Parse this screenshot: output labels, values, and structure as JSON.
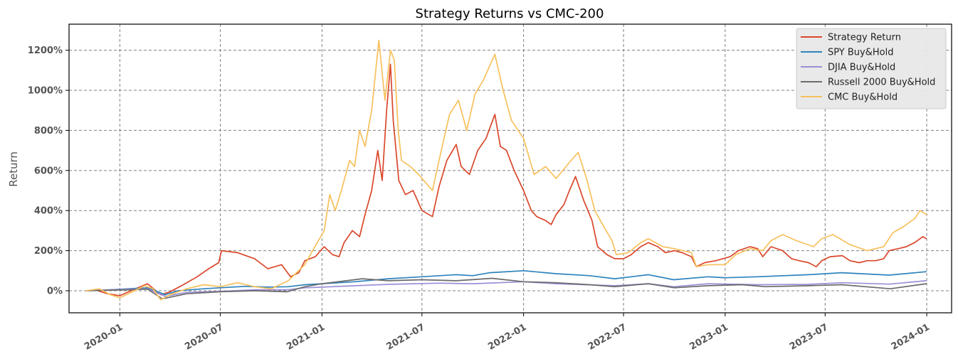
{
  "chart_data": {
    "type": "line",
    "title": "Strategy Returns vs CMC-200",
    "xlabel": "",
    "ylabel": "Return",
    "xlim": [
      "2019-10-01",
      "2024-02-15"
    ],
    "ylim": [
      -110,
      1330
    ],
    "x_ticks": [
      "2020-01",
      "2020-07",
      "2021-01",
      "2021-07",
      "2022-01",
      "2022-07",
      "2023-01",
      "2023-07",
      "2024-01"
    ],
    "y_ticks": [
      0,
      200,
      400,
      600,
      800,
      1000,
      1200
    ],
    "y_tick_labels": [
      "0%",
      "200%",
      "400%",
      "600%",
      "800%",
      "1000%",
      "1200%"
    ],
    "grid": true,
    "legend_position": "top-right",
    "series": [
      {
        "name": "Strategy Return",
        "color": "#d9472b",
        "points": [
          [
            "2019-11-01",
            0
          ],
          [
            "2019-11-20",
            2
          ],
          [
            "2019-12-10",
            -15
          ],
          [
            "2020-01-01",
            -25
          ],
          [
            "2020-01-25",
            5
          ],
          [
            "2020-02-20",
            35
          ],
          [
            "2020-03-15",
            -20
          ],
          [
            "2020-04-01",
            -5
          ],
          [
            "2020-04-25",
            30
          ],
          [
            "2020-05-20",
            70
          ],
          [
            "2020-06-10",
            110
          ],
          [
            "2020-06-28",
            140
          ],
          [
            "2020-07-03",
            200
          ],
          [
            "2020-08-01",
            190
          ],
          [
            "2020-09-01",
            160
          ],
          [
            "2020-09-25",
            110
          ],
          [
            "2020-10-20",
            130
          ],
          [
            "2020-11-05",
            70
          ],
          [
            "2020-11-20",
            90
          ],
          [
            "2020-12-01",
            150
          ],
          [
            "2020-12-20",
            170
          ],
          [
            "2021-01-05",
            220
          ],
          [
            "2021-01-20",
            180
          ],
          [
            "2021-02-01",
            170
          ],
          [
            "2021-02-10",
            240
          ],
          [
            "2021-02-25",
            300
          ],
          [
            "2021-03-10",
            270
          ],
          [
            "2021-03-20",
            380
          ],
          [
            "2021-04-01",
            500
          ],
          [
            "2021-04-12",
            700
          ],
          [
            "2021-04-20",
            550
          ],
          [
            "2021-04-28",
            900
          ],
          [
            "2021-05-05",
            1130
          ],
          [
            "2021-05-10",
            850
          ],
          [
            "2021-05-15",
            700
          ],
          [
            "2021-05-20",
            550
          ],
          [
            "2021-06-01",
            480
          ],
          [
            "2021-06-15",
            500
          ],
          [
            "2021-07-01",
            400
          ],
          [
            "2021-07-20",
            370
          ],
          [
            "2021-08-01",
            520
          ],
          [
            "2021-08-15",
            650
          ],
          [
            "2021-09-01",
            730
          ],
          [
            "2021-09-10",
            620
          ],
          [
            "2021-09-25",
            580
          ],
          [
            "2021-10-10",
            700
          ],
          [
            "2021-10-25",
            760
          ],
          [
            "2021-11-10",
            880
          ],
          [
            "2021-11-20",
            720
          ],
          [
            "2021-12-01",
            700
          ],
          [
            "2021-12-15",
            600
          ],
          [
            "2022-01-01",
            500
          ],
          [
            "2022-01-15",
            400
          ],
          [
            "2022-01-25",
            370
          ],
          [
            "2022-02-10",
            350
          ],
          [
            "2022-02-20",
            330
          ],
          [
            "2022-03-01",
            380
          ],
          [
            "2022-03-15",
            430
          ],
          [
            "2022-03-25",
            500
          ],
          [
            "2022-04-05",
            570
          ],
          [
            "2022-04-20",
            450
          ],
          [
            "2022-05-05",
            350
          ],
          [
            "2022-05-15",
            220
          ],
          [
            "2022-06-01",
            180
          ],
          [
            "2022-06-15",
            160
          ],
          [
            "2022-07-01",
            160
          ],
          [
            "2022-07-15",
            180
          ],
          [
            "2022-08-01",
            220
          ],
          [
            "2022-08-15",
            240
          ],
          [
            "2022-09-01",
            220
          ],
          [
            "2022-09-15",
            190
          ],
          [
            "2022-10-01",
            200
          ],
          [
            "2022-10-15",
            190
          ],
          [
            "2022-11-01",
            170
          ],
          [
            "2022-11-10",
            120
          ],
          [
            "2022-11-25",
            140
          ],
          [
            "2022-12-15",
            150
          ],
          [
            "2023-01-10",
            170
          ],
          [
            "2023-01-25",
            200
          ],
          [
            "2023-02-15",
            220
          ],
          [
            "2023-03-01",
            210
          ],
          [
            "2023-03-10",
            170
          ],
          [
            "2023-03-25",
            220
          ],
          [
            "2023-04-15",
            200
          ],
          [
            "2023-05-01",
            160
          ],
          [
            "2023-05-15",
            150
          ],
          [
            "2023-06-01",
            140
          ],
          [
            "2023-06-15",
            120
          ],
          [
            "2023-06-25",
            150
          ],
          [
            "2023-07-10",
            170
          ],
          [
            "2023-08-01",
            175
          ],
          [
            "2023-08-15",
            150
          ],
          [
            "2023-09-01",
            140
          ],
          [
            "2023-09-15",
            150
          ],
          [
            "2023-10-01",
            150
          ],
          [
            "2023-10-15",
            160
          ],
          [
            "2023-10-25",
            200
          ],
          [
            "2023-11-10",
            210
          ],
          [
            "2023-11-25",
            220
          ],
          [
            "2023-12-10",
            240
          ],
          [
            "2023-12-25",
            270
          ],
          [
            "2023-12-31",
            260
          ]
        ]
      },
      {
        "name": "SPY Buy&Hold",
        "color": "#2e83bd",
        "points": [
          [
            "2019-11-01",
            0
          ],
          [
            "2019-12-15",
            5
          ],
          [
            "2020-01-15",
            10
          ],
          [
            "2020-02-20",
            15
          ],
          [
            "2020-03-23",
            -20
          ],
          [
            "2020-04-15",
            0
          ],
          [
            "2020-06-01",
            10
          ],
          [
            "2020-07-01",
            15
          ],
          [
            "2020-08-15",
            22
          ],
          [
            "2020-09-25",
            18
          ],
          [
            "2020-11-01",
            20
          ],
          [
            "2020-12-01",
            30
          ],
          [
            "2021-01-01",
            35
          ],
          [
            "2021-03-01",
            45
          ],
          [
            "2021-05-01",
            60
          ],
          [
            "2021-07-01",
            70
          ],
          [
            "2021-09-01",
            80
          ],
          [
            "2021-10-01",
            75
          ],
          [
            "2021-11-01",
            90
          ],
          [
            "2022-01-01",
            100
          ],
          [
            "2022-03-01",
            85
          ],
          [
            "2022-05-01",
            75
          ],
          [
            "2022-06-15",
            60
          ],
          [
            "2022-08-15",
            80
          ],
          [
            "2022-09-30",
            55
          ],
          [
            "2022-12-01",
            70
          ],
          [
            "2023-01-01",
            65
          ],
          [
            "2023-03-01",
            70
          ],
          [
            "2023-06-01",
            80
          ],
          [
            "2023-07-31",
            90
          ],
          [
            "2023-10-25",
            78
          ],
          [
            "2023-12-31",
            95
          ]
        ]
      },
      {
        "name": "DJIA Buy&Hold",
        "color": "#9b8fd6",
        "points": [
          [
            "2019-11-01",
            0
          ],
          [
            "2020-01-15",
            8
          ],
          [
            "2020-02-20",
            10
          ],
          [
            "2020-03-23",
            -28
          ],
          [
            "2020-05-01",
            -8
          ],
          [
            "2020-07-01",
            -3
          ],
          [
            "2020-09-01",
            5
          ],
          [
            "2020-11-01",
            5
          ],
          [
            "2020-12-01",
            15
          ],
          [
            "2021-01-01",
            18
          ],
          [
            "2021-05-01",
            32
          ],
          [
            "2021-08-01",
            38
          ],
          [
            "2021-10-01",
            35
          ],
          [
            "2022-01-01",
            45
          ],
          [
            "2022-03-01",
            35
          ],
          [
            "2022-06-15",
            25
          ],
          [
            "2022-08-15",
            35
          ],
          [
            "2022-09-30",
            20
          ],
          [
            "2022-12-01",
            35
          ],
          [
            "2023-03-01",
            30
          ],
          [
            "2023-06-01",
            32
          ],
          [
            "2023-08-01",
            40
          ],
          [
            "2023-10-25",
            33
          ],
          [
            "2023-12-31",
            50
          ]
        ]
      },
      {
        "name": "Russell 2000 Buy&Hold",
        "color": "#6b6b6b",
        "points": [
          [
            "2019-11-01",
            0
          ],
          [
            "2020-01-15",
            5
          ],
          [
            "2020-02-20",
            8
          ],
          [
            "2020-03-18",
            -40
          ],
          [
            "2020-05-01",
            -15
          ],
          [
            "2020-07-01",
            -5
          ],
          [
            "2020-09-01",
            0
          ],
          [
            "2020-10-30",
            -5
          ],
          [
            "2020-12-01",
            20
          ],
          [
            "2021-01-01",
            35
          ],
          [
            "2021-03-15",
            60
          ],
          [
            "2021-05-01",
            50
          ],
          [
            "2021-07-01",
            55
          ],
          [
            "2021-09-01",
            50
          ],
          [
            "2021-11-05",
            62
          ],
          [
            "2022-01-01",
            45
          ],
          [
            "2022-03-01",
            40
          ],
          [
            "2022-05-01",
            30
          ],
          [
            "2022-06-15",
            20
          ],
          [
            "2022-08-15",
            35
          ],
          [
            "2022-10-01",
            15
          ],
          [
            "2022-12-01",
            25
          ],
          [
            "2023-02-01",
            30
          ],
          [
            "2023-03-15",
            20
          ],
          [
            "2023-06-01",
            25
          ],
          [
            "2023-07-31",
            30
          ],
          [
            "2023-10-27",
            10
          ],
          [
            "2023-12-31",
            35
          ]
        ]
      },
      {
        "name": "CMC Buy&Hold",
        "color": "#f7c05c",
        "points": [
          [
            "2019-11-01",
            0
          ],
          [
            "2019-11-25",
            10
          ],
          [
            "2019-12-15",
            -20
          ],
          [
            "2020-01-01",
            -35
          ],
          [
            "2020-01-20",
            -10
          ],
          [
            "2020-02-15",
            25
          ],
          [
            "2020-03-01",
            10
          ],
          [
            "2020-03-15",
            -45
          ],
          [
            "2020-04-01",
            -20
          ],
          [
            "2020-05-01",
            10
          ],
          [
            "2020-06-01",
            30
          ],
          [
            "2020-07-01",
            20
          ],
          [
            "2020-08-01",
            40
          ],
          [
            "2020-09-01",
            20
          ],
          [
            "2020-10-01",
            10
          ],
          [
            "2020-11-01",
            50
          ],
          [
            "2020-12-01",
            130
          ],
          [
            "2020-12-15",
            200
          ],
          [
            "2021-01-05",
            300
          ],
          [
            "2021-01-15",
            480
          ],
          [
            "2021-01-25",
            400
          ],
          [
            "2021-02-05",
            500
          ],
          [
            "2021-02-20",
            650
          ],
          [
            "2021-03-01",
            620
          ],
          [
            "2021-03-10",
            800
          ],
          [
            "2021-03-20",
            720
          ],
          [
            "2021-04-01",
            900
          ],
          [
            "2021-04-14",
            1250
          ],
          [
            "2021-04-25",
            950
          ],
          [
            "2021-05-05",
            1200
          ],
          [
            "2021-05-12",
            1150
          ],
          [
            "2021-05-19",
            800
          ],
          [
            "2021-05-25",
            650
          ],
          [
            "2021-06-10",
            620
          ],
          [
            "2021-06-25",
            580
          ],
          [
            "2021-07-20",
            500
          ],
          [
            "2021-08-05",
            700
          ],
          [
            "2021-08-20",
            880
          ],
          [
            "2021-09-05",
            950
          ],
          [
            "2021-09-20",
            800
          ],
          [
            "2021-10-05",
            980
          ],
          [
            "2021-10-20",
            1050
          ],
          [
            "2021-11-10",
            1180
          ],
          [
            "2021-11-25",
            1000
          ],
          [
            "2021-12-10",
            850
          ],
          [
            "2022-01-01",
            760
          ],
          [
            "2022-01-20",
            580
          ],
          [
            "2022-02-10",
            620
          ],
          [
            "2022-03-01",
            560
          ],
          [
            "2022-03-25",
            640
          ],
          [
            "2022-04-10",
            690
          ],
          [
            "2022-04-25",
            560
          ],
          [
            "2022-05-10",
            400
          ],
          [
            "2022-05-20",
            350
          ],
          [
            "2022-06-10",
            250
          ],
          [
            "2022-06-18",
            180
          ],
          [
            "2022-07-10",
            190
          ],
          [
            "2022-08-01",
            240
          ],
          [
            "2022-08-15",
            260
          ],
          [
            "2022-09-10",
            220
          ],
          [
            "2022-10-01",
            210
          ],
          [
            "2022-11-01",
            190
          ],
          [
            "2022-11-10",
            120
          ],
          [
            "2022-12-01",
            130
          ],
          [
            "2023-01-01",
            130
          ],
          [
            "2023-01-20",
            180
          ],
          [
            "2023-02-15",
            210
          ],
          [
            "2023-03-10",
            200
          ],
          [
            "2023-03-25",
            250
          ],
          [
            "2023-04-15",
            280
          ],
          [
            "2023-05-10",
            250
          ],
          [
            "2023-06-10",
            220
          ],
          [
            "2023-06-25",
            260
          ],
          [
            "2023-07-15",
            280
          ],
          [
            "2023-08-15",
            230
          ],
          [
            "2023-09-15",
            200
          ],
          [
            "2023-10-15",
            220
          ],
          [
            "2023-11-01",
            290
          ],
          [
            "2023-11-20",
            320
          ],
          [
            "2023-12-10",
            360
          ],
          [
            "2023-12-20",
            400
          ],
          [
            "2023-12-31",
            380
          ]
        ]
      }
    ]
  }
}
